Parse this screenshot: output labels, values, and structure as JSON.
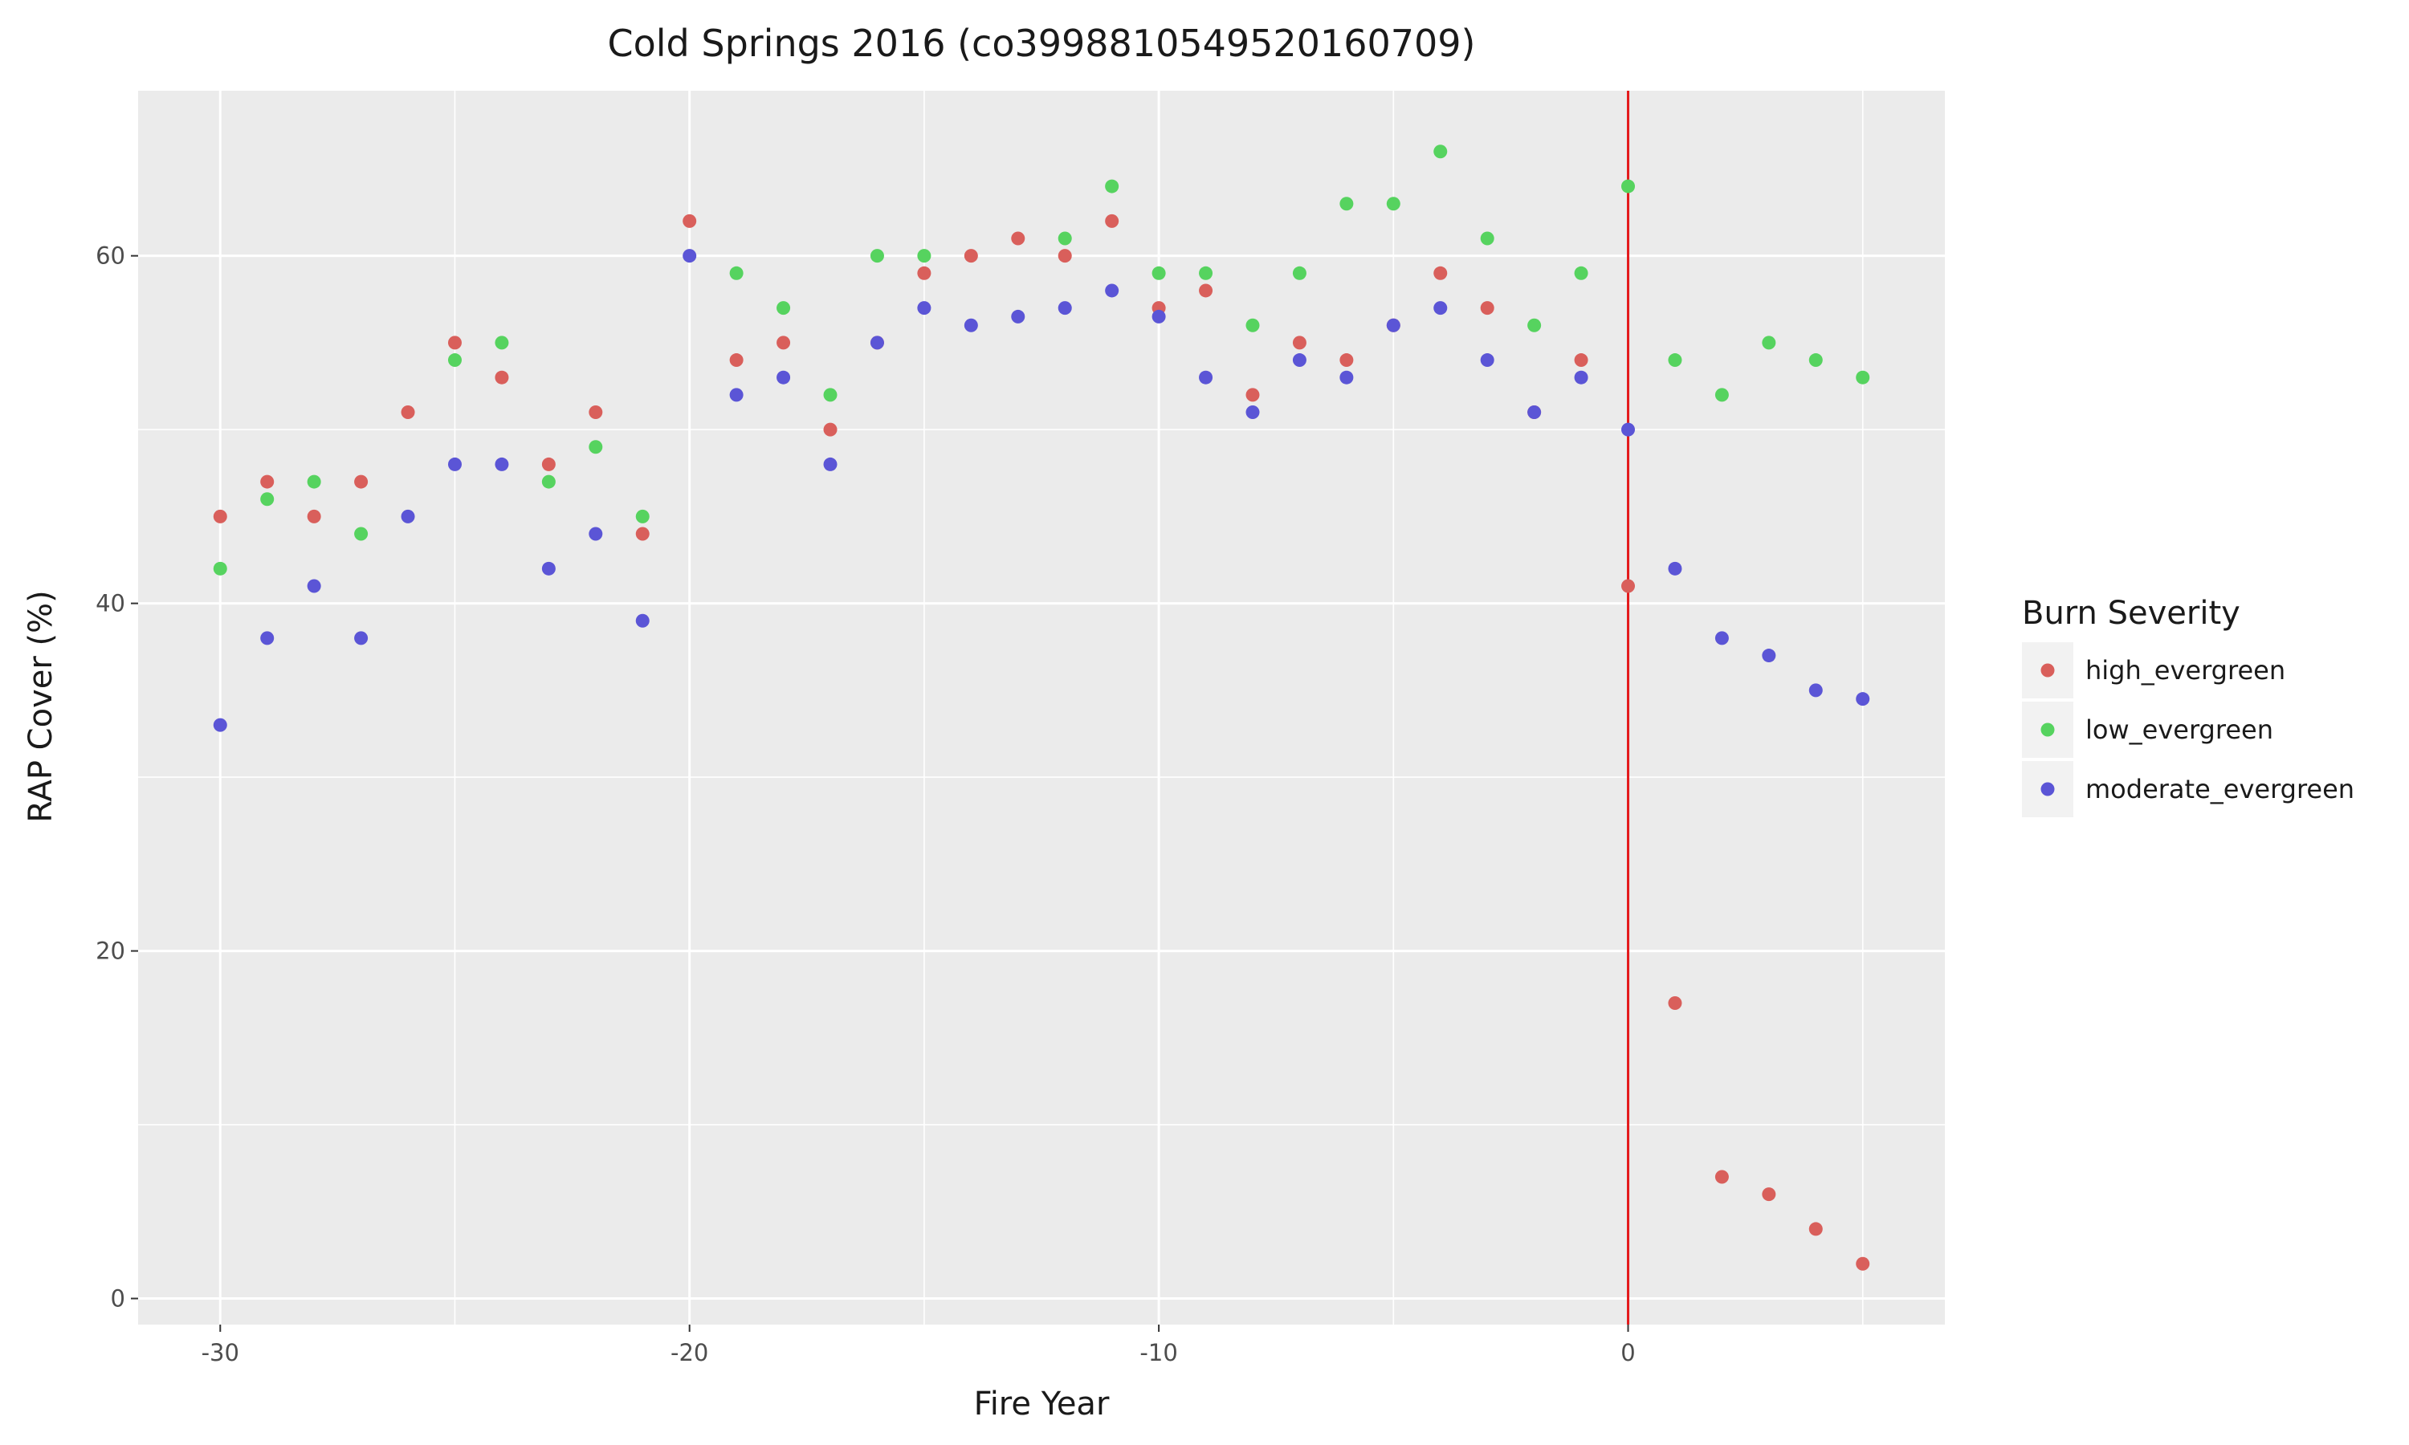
{
  "chart_data": {
    "type": "scatter",
    "title": "Cold Springs 2016 (co39988105495201607​09)",
    "xlabel": "Fire Year",
    "ylabel": "RAP Cover (%)",
    "xlim": [
      -31.75,
      6.75
    ],
    "ylim": [
      -1.5,
      69.5
    ],
    "xticks": [
      -30,
      -20,
      -10,
      0
    ],
    "yticks": [
      0,
      20,
      40,
      60
    ],
    "xtick_labels": [
      "-30",
      "-20",
      "-10",
      "0"
    ],
    "ytick_labels": [
      "0",
      "20",
      "40",
      "60"
    ],
    "grid": true,
    "vline": {
      "x": 0,
      "color": "#e31a1c"
    },
    "legend": {
      "title": "Burn Severity",
      "placement": "right"
    },
    "series": [
      {
        "name": "high_evergreen",
        "color": "#d95f5b",
        "x": [
          -30,
          -29,
          -28,
          -27,
          -26,
          -25,
          -24,
          -23,
          -22,
          -21,
          -20,
          -19,
          -18,
          -17,
          -16,
          -15,
          -14,
          -13,
          -12,
          -11,
          -10,
          -9,
          -8,
          -7,
          -6,
          -5,
          -4,
          -3,
          -2,
          -1,
          0,
          1,
          2,
          3,
          4,
          5
        ],
        "y": [
          45,
          47,
          45,
          47,
          51,
          55,
          53,
          48,
          51,
          44,
          62,
          54,
          55,
          50,
          55,
          59,
          60,
          61,
          60,
          62,
          57,
          58,
          52,
          55,
          54,
          56,
          59,
          57,
          51,
          54,
          41,
          17,
          7,
          6,
          4,
          2
        ]
      },
      {
        "name": "low_evergreen",
        "color": "#56d35f",
        "x": [
          -30,
          -29,
          -28,
          -27,
          -25,
          -24,
          -23,
          -22,
          -21,
          -19,
          -18,
          -17,
          -16,
          -15,
          -12,
          -11,
          -10,
          -9,
          -8,
          -7,
          -6,
          -5,
          -4,
          -3,
          -2,
          -1,
          0,
          1,
          2,
          3,
          4,
          5
        ],
        "y": [
          42,
          46,
          47,
          44,
          54,
          55,
          47,
          49,
          45,
          59,
          57,
          52,
          60,
          60,
          61,
          64,
          59,
          59,
          56,
          59,
          63,
          63,
          66,
          61,
          56,
          59,
          64,
          54,
          52,
          55,
          54,
          53
        ]
      },
      {
        "name": "moderate_evergreen",
        "color": "#5b55d6",
        "x": [
          -30,
          -29,
          -28,
          -27,
          -26,
          -25,
          -24,
          -23,
          -22,
          -21,
          -20,
          -19,
          -18,
          -17,
          -16,
          -15,
          -14,
          -13,
          -12,
          -11,
          -10,
          -9,
          -8,
          -7,
          -6,
          -5,
          -4,
          -3,
          -2,
          -1,
          0,
          1,
          2,
          3,
          4,
          5
        ],
        "y": [
          33,
          38,
          41,
          38,
          45,
          48,
          48,
          42,
          44,
          39,
          60,
          52,
          53,
          48,
          55,
          57,
          56,
          56.5,
          57,
          58,
          56.5,
          53,
          51,
          54,
          53,
          56,
          57,
          54,
          51,
          53,
          50,
          42,
          38,
          37,
          35,
          34.5
        ]
      }
    ]
  }
}
